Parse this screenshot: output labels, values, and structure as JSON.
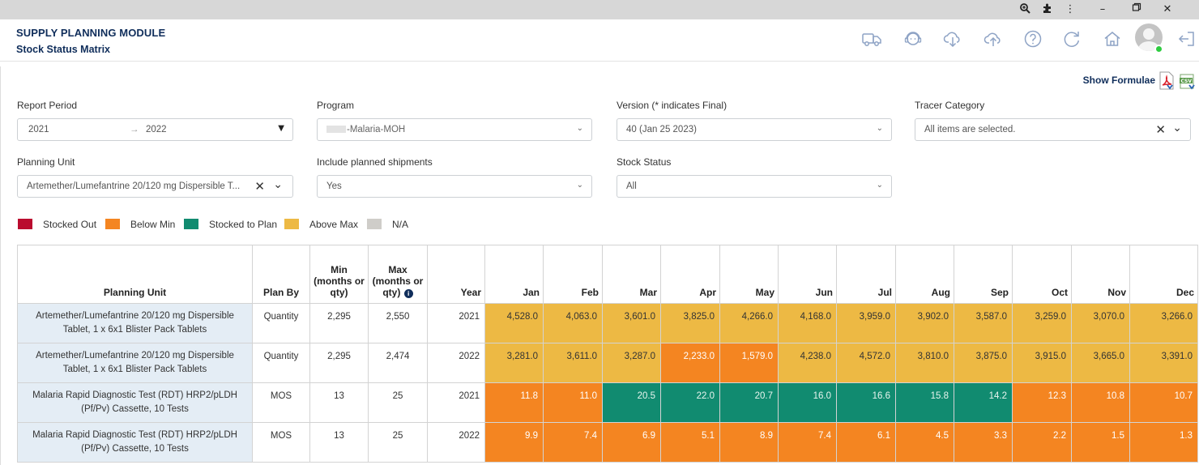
{
  "app": {
    "title": "SUPPLY PLANNING MODULE",
    "subtitle": "Stock Status Matrix"
  },
  "toolbar": {
    "show_formulae": "Show Formulae"
  },
  "filters": {
    "report_period": {
      "label": "Report Period",
      "start": "2021",
      "arrow": "→",
      "end": "2022"
    },
    "program": {
      "label": "Program",
      "value": "-Malaria-MOH"
    },
    "version": {
      "label": "Version (* indicates Final)",
      "value": "40 (Jan 25 2023)"
    },
    "tracer_category": {
      "label": "Tracer Category",
      "value": "All items are selected."
    },
    "planning_unit": {
      "label": "Planning Unit",
      "value": "Artemether/Lumefantrine 20/120 mg Dispersible T..."
    },
    "include_planned": {
      "label": "Include planned shipments",
      "value": "Yes"
    },
    "stock_status": {
      "label": "Stock Status",
      "value": "All"
    }
  },
  "legend": [
    {
      "label": "Stocked Out",
      "color": "#ba0c2f"
    },
    {
      "label": "Below Min",
      "color": "#f48521"
    },
    {
      "label": "Stocked to Plan",
      "color": "#118b70"
    },
    {
      "label": "Above Max",
      "color": "#edb944"
    },
    {
      "label": "N/A",
      "color": "#cfcdc9"
    }
  ],
  "table": {
    "headers": {
      "planning_unit": "Planning Unit",
      "plan_by": "Plan By",
      "min": "Min (months or qty)",
      "max": "Max (months or qty)",
      "year": "Year",
      "months": [
        "Jan",
        "Feb",
        "Mar",
        "Apr",
        "May",
        "Jun",
        "Jul",
        "Aug",
        "Sep",
        "Oct",
        "Nov",
        "Dec"
      ]
    },
    "rows": [
      {
        "planning_unit": "Artemether/Lumefantrine 20/120 mg Dispersible Tablet, 1 x 6x1 Blister Pack Tablets",
        "plan_by": "Quantity",
        "min": "2,295",
        "max": "2,550",
        "year": "2021",
        "values": [
          "4,528.0",
          "4,063.0",
          "3,601.0",
          "3,825.0",
          "4,266.0",
          "4,168.0",
          "3,959.0",
          "3,902.0",
          "3,587.0",
          "3,259.0",
          "3,070.0",
          "3,266.0"
        ],
        "status": [
          "above-max",
          "above-max",
          "above-max",
          "above-max",
          "above-max",
          "above-max",
          "above-max",
          "above-max",
          "above-max",
          "above-max",
          "above-max",
          "above-max"
        ]
      },
      {
        "planning_unit": "Artemether/Lumefantrine 20/120 mg Dispersible Tablet, 1 x 6x1 Blister Pack Tablets",
        "plan_by": "Quantity",
        "min": "2,295",
        "max": "2,474",
        "year": "2022",
        "values": [
          "3,281.0",
          "3,611.0",
          "3,287.0",
          "2,233.0",
          "1,579.0",
          "4,238.0",
          "4,572.0",
          "3,810.0",
          "3,875.0",
          "3,915.0",
          "3,665.0",
          "3,391.0"
        ],
        "status": [
          "above-max",
          "above-max",
          "above-max",
          "below-min",
          "below-min",
          "above-max",
          "above-max",
          "above-max",
          "above-max",
          "above-max",
          "above-max",
          "above-max"
        ]
      },
      {
        "planning_unit": "Malaria Rapid Diagnostic Test (RDT) HRP2/pLDH (Pf/Pv) Cassette, 10 Tests",
        "plan_by": "MOS",
        "min": "13",
        "max": "25",
        "year": "2021",
        "values": [
          "11.8",
          "11.0",
          "20.5",
          "22.0",
          "20.7",
          "16.0",
          "16.6",
          "15.8",
          "14.2",
          "12.3",
          "10.8",
          "10.7"
        ],
        "status": [
          "below-min",
          "below-min",
          "stocked-to-plan",
          "stocked-to-plan",
          "stocked-to-plan",
          "stocked-to-plan",
          "stocked-to-plan",
          "stocked-to-plan",
          "stocked-to-plan",
          "below-min",
          "below-min",
          "below-min"
        ]
      },
      {
        "planning_unit": "Malaria Rapid Diagnostic Test (RDT) HRP2/pLDH (Pf/Pv) Cassette, 10 Tests",
        "plan_by": "MOS",
        "min": "13",
        "max": "25",
        "year": "2022",
        "values": [
          "9.9",
          "7.4",
          "6.9",
          "5.1",
          "8.9",
          "7.4",
          "6.1",
          "4.5",
          "3.3",
          "2.2",
          "1.5",
          "1.3"
        ],
        "status": [
          "below-min",
          "below-min",
          "below-min",
          "below-min",
          "below-min",
          "below-min",
          "below-min",
          "below-min",
          "below-min",
          "below-min",
          "below-min",
          "below-min"
        ]
      }
    ]
  },
  "status_colors": {
    "above-max": "#edb944",
    "below-min": "#f48521",
    "stocked-to-plan": "#118b70",
    "stocked-out": "#ba0c2f",
    "na": "#cfcdc9"
  },
  "icons": [
    "zoom-icon",
    "extension-icon",
    "more-icon",
    "minimize-icon",
    "restore-icon",
    "close-icon",
    "truck-icon",
    "support-icon",
    "cloud-download-icon",
    "cloud-upload-icon",
    "help-icon",
    "refresh-icon",
    "home-icon",
    "avatar",
    "logout-icon",
    "pdf-icon",
    "csv-icon"
  ]
}
